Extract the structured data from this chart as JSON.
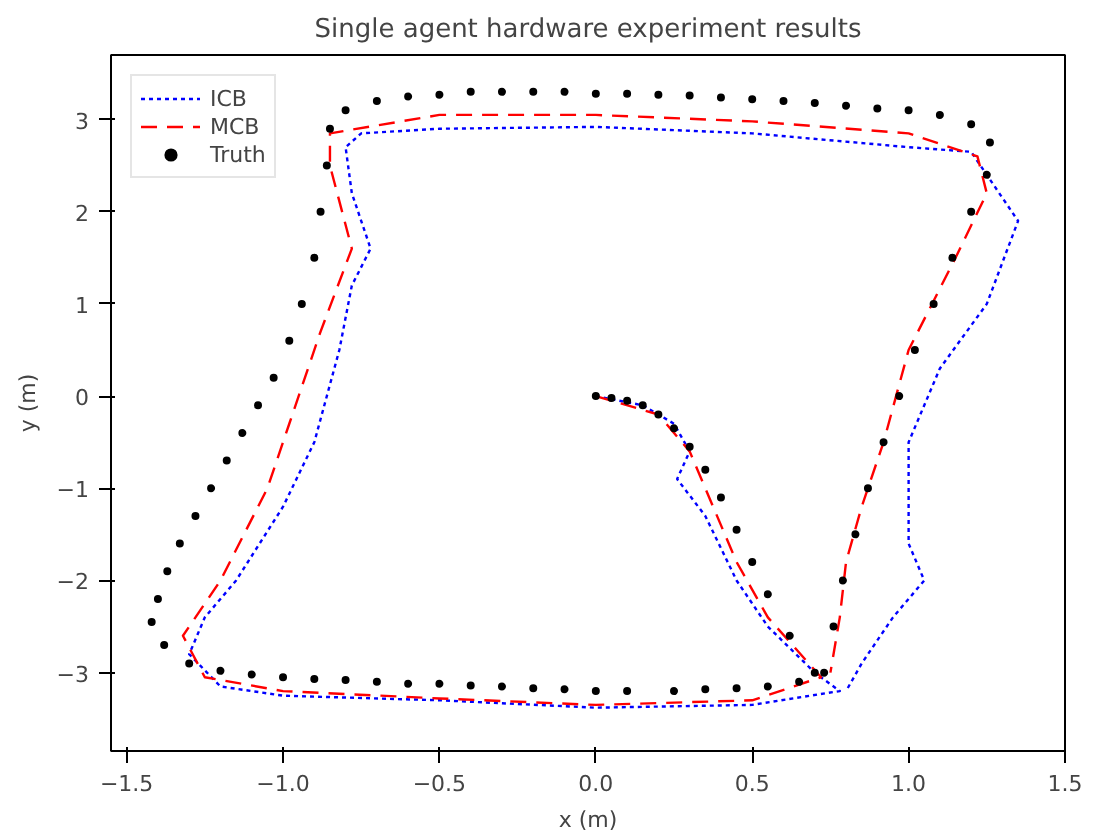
{
  "chart_data": {
    "type": "line",
    "title": "Single agent hardware experiment results",
    "xlabel": "x (m)",
    "ylabel": "y (m)",
    "xlim": [
      -1.55,
      1.5
    ],
    "ylim": [
      -3.85,
      3.7
    ],
    "xticks": [
      {
        "value": -1.5,
        "label": "−1.5"
      },
      {
        "value": -1.0,
        "label": "−1.0"
      },
      {
        "value": -0.5,
        "label": "−0.5"
      },
      {
        "value": 0.0,
        "label": "0.0"
      },
      {
        "value": 0.5,
        "label": "0.5"
      },
      {
        "value": 1.0,
        "label": "1.0"
      },
      {
        "value": 1.5,
        "label": "1.5"
      }
    ],
    "yticks": [
      {
        "value": -3,
        "label": "−3"
      },
      {
        "value": -2,
        "label": "−2"
      },
      {
        "value": -1,
        "label": "−1"
      },
      0,
      1,
      2,
      3
    ],
    "grid": false,
    "legend": "top left",
    "series": [
      {
        "name": "ICB",
        "line_style": "dotted",
        "color": "#0000ff",
        "x": [
          0,
          0.15,
          0.25,
          0.3,
          0.26,
          0.35,
          0.45,
          0.55,
          0.7,
          0.78,
          0.5,
          0,
          -0.5,
          -1.0,
          -1.2,
          -1.3,
          -1.25,
          -1.15,
          -1.0,
          -0.9,
          -0.82,
          -0.78,
          -0.72,
          -0.78,
          -0.8,
          -0.75,
          -0.5,
          0,
          0.5,
          1.0,
          1.2,
          1.35,
          1.25,
          1.1,
          1.0,
          1.0,
          1.0,
          1.05,
          0.95,
          0.85,
          0.8
        ],
        "values": [
          0,
          -0.1,
          -0.3,
          -0.6,
          -0.9,
          -1.3,
          -2.0,
          -2.5,
          -3.0,
          -3.2,
          -3.35,
          -3.38,
          -3.3,
          -3.25,
          -3.15,
          -2.8,
          -2.4,
          -2.0,
          -1.2,
          -0.5,
          0.5,
          1.2,
          1.6,
          2.2,
          2.7,
          2.85,
          2.9,
          2.92,
          2.85,
          2.7,
          2.65,
          1.9,
          1.0,
          0.3,
          -0.5,
          -1.0,
          -1.6,
          -2.0,
          -2.4,
          -2.9,
          -3.2
        ]
      },
      {
        "name": "MCB",
        "line_style": "dashed",
        "color": "#ff0000",
        "x": [
          0,
          0.2,
          0.3,
          0.35,
          0.45,
          0.55,
          0.72,
          0.5,
          0,
          -0.5,
          -1.0,
          -1.25,
          -1.32,
          -1.2,
          -1.05,
          -0.98,
          -0.88,
          -0.78,
          -0.85,
          -0.85,
          -0.5,
          0,
          0.5,
          1.0,
          1.22,
          1.25,
          1.15,
          1.0,
          0.92,
          0.85,
          0.8,
          0.78,
          0.75
        ],
        "values": [
          0,
          -0.2,
          -0.6,
          -1.0,
          -1.8,
          -2.4,
          -3.05,
          -3.3,
          -3.35,
          -3.28,
          -3.2,
          -3.05,
          -2.6,
          -2.0,
          -1.0,
          -0.3,
          0.7,
          1.6,
          2.5,
          2.85,
          3.05,
          3.05,
          2.98,
          2.85,
          2.6,
          2.2,
          1.5,
          0.5,
          -0.5,
          -1.2,
          -1.8,
          -2.4,
          -3.0
        ]
      },
      {
        "name": "Truth",
        "type": "scatter",
        "marker": "circle",
        "color": "#000000",
        "x": [
          0,
          0.05,
          0.1,
          0.15,
          0.2,
          0.25,
          0.3,
          0.35,
          0.4,
          0.45,
          0.5,
          0.55,
          0.62,
          0.7,
          0.65,
          0.55,
          0.45,
          0.35,
          0.25,
          0.1,
          0,
          -0.1,
          -0.2,
          -0.3,
          -0.4,
          -0.5,
          -0.6,
          -0.7,
          -0.8,
          -0.9,
          -1.0,
          -1.1,
          -1.2,
          -1.3,
          -1.38,
          -1.42,
          -1.4,
          -1.37,
          -1.33,
          -1.28,
          -1.23,
          -1.18,
          -1.13,
          -1.08,
          -1.03,
          -0.98,
          -0.94,
          -0.9,
          -0.88,
          -0.86,
          -0.85,
          -0.8,
          -0.7,
          -0.6,
          -0.5,
          -0.4,
          -0.3,
          -0.2,
          -0.1,
          0,
          0.1,
          0.2,
          0.3,
          0.4,
          0.5,
          0.6,
          0.7,
          0.8,
          0.9,
          1.0,
          1.1,
          1.2,
          1.26,
          1.25,
          1.2,
          1.14,
          1.08,
          1.02,
          0.97,
          0.92,
          0.87,
          0.83,
          0.79,
          0.76,
          0.73
        ],
        "values": [
          0,
          -0.02,
          -0.05,
          -0.1,
          -0.2,
          -0.35,
          -0.55,
          -0.8,
          -1.1,
          -1.45,
          -1.8,
          -2.15,
          -2.6,
          -3.0,
          -3.1,
          -3.15,
          -3.17,
          -3.18,
          -3.2,
          -3.2,
          -3.2,
          -3.18,
          -3.17,
          -3.15,
          -3.14,
          -3.12,
          -3.12,
          -3.1,
          -3.08,
          -3.07,
          -3.05,
          -3.02,
          -2.98,
          -2.9,
          -2.7,
          -2.45,
          -2.2,
          -1.9,
          -1.6,
          -1.3,
          -1.0,
          -0.7,
          -0.4,
          -0.1,
          0.2,
          0.6,
          1.0,
          1.5,
          2.0,
          2.5,
          2.9,
          3.1,
          3.2,
          3.25,
          3.27,
          3.3,
          3.3,
          3.3,
          3.3,
          3.28,
          3.28,
          3.27,
          3.26,
          3.24,
          3.22,
          3.2,
          3.18,
          3.15,
          3.12,
          3.1,
          3.05,
          2.95,
          2.75,
          2.4,
          2.0,
          1.5,
          1.0,
          0.5,
          0.0,
          -0.5,
          -1.0,
          -1.5,
          -2.0,
          -2.5,
          -3.0
        ]
      }
    ]
  }
}
